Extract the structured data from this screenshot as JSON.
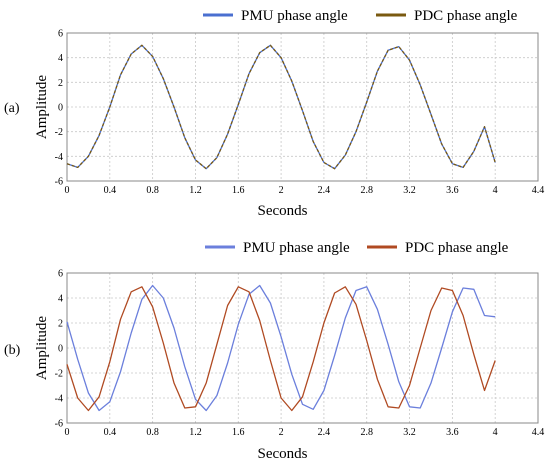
{
  "chart_data": [
    {
      "type": "line",
      "panel_label": "(a)",
      "xlabel": "Seconds",
      "ylabel": "Amplitude",
      "xlim": [
        0,
        4.4
      ],
      "ylim": [
        -6,
        6
      ],
      "x_ticks": [
        "0",
        "0.4",
        "0.8",
        "1.2",
        "1.6",
        "2",
        "2.4",
        "2.8",
        "3.2",
        "3.6",
        "4",
        "4.4"
      ],
      "y_ticks": [
        "-6",
        "-4",
        "-2",
        "0",
        "2",
        "4",
        "6"
      ],
      "grid": true,
      "legend_position": "top",
      "series": [
        {
          "name": "PMU phase angle",
          "color": "#4a6fd0",
          "x": [
            0,
            0.1,
            0.2,
            0.3,
            0.4,
            0.5,
            0.6,
            0.7,
            0.8,
            0.9,
            1.0,
            1.1,
            1.2,
            1.3,
            1.4,
            1.5,
            1.6,
            1.7,
            1.8,
            1.9,
            2.0,
            2.1,
            2.2,
            2.3,
            2.4,
            2.5,
            2.6,
            2.7,
            2.8,
            2.9,
            3.0,
            3.1,
            3.2,
            3.3,
            3.4,
            3.5,
            3.6,
            3.7,
            3.8,
            3.9,
            4.0
          ],
          "y": [
            -4.6,
            -4.9,
            -4.0,
            -2.3,
            0.0,
            2.6,
            4.3,
            5.0,
            4.1,
            2.3,
            0.0,
            -2.5,
            -4.3,
            -5.0,
            -4.1,
            -2.2,
            0.2,
            2.7,
            4.4,
            5.0,
            4.0,
            2.1,
            -0.3,
            -2.8,
            -4.5,
            -5.0,
            -3.9,
            -2.0,
            0.4,
            2.9,
            4.6,
            4.9,
            3.8,
            1.8,
            -0.6,
            -3.0,
            -4.6,
            -4.9,
            -3.6,
            -1.6,
            -4.5
          ]
        },
        {
          "name": "PDC phase angle",
          "color": "#7a5a10",
          "x": [
            0,
            0.1,
            0.2,
            0.3,
            0.4,
            0.5,
            0.6,
            0.7,
            0.8,
            0.9,
            1.0,
            1.1,
            1.2,
            1.3,
            1.4,
            1.5,
            1.6,
            1.7,
            1.8,
            1.9,
            2.0,
            2.1,
            2.2,
            2.3,
            2.4,
            2.5,
            2.6,
            2.7,
            2.8,
            2.9,
            3.0,
            3.1,
            3.2,
            3.3,
            3.4,
            3.5,
            3.6,
            3.7,
            3.8,
            3.9,
            4.0
          ],
          "y": [
            -4.6,
            -4.9,
            -4.0,
            -2.3,
            0.0,
            2.6,
            4.3,
            5.0,
            4.1,
            2.3,
            0.0,
            -2.5,
            -4.3,
            -5.0,
            -4.1,
            -2.2,
            0.2,
            2.7,
            4.4,
            5.0,
            4.0,
            2.1,
            -0.3,
            -2.8,
            -4.5,
            -5.0,
            -3.9,
            -2.0,
            0.4,
            2.9,
            4.6,
            4.9,
            3.8,
            1.8,
            -0.6,
            -3.0,
            -4.6,
            -4.9,
            -3.6,
            -1.6,
            -4.5
          ]
        }
      ]
    },
    {
      "type": "line",
      "panel_label": "(b)",
      "xlabel": "Seconds",
      "ylabel": "Amplitude",
      "xlim": [
        0,
        4.4
      ],
      "ylim": [
        -6,
        6
      ],
      "x_ticks": [
        "0",
        "0.4",
        "0.8",
        "1.2",
        "1.6",
        "2",
        "2.4",
        "2.8",
        "3.2",
        "3.6",
        "4",
        "4.4"
      ],
      "y_ticks": [
        "-6",
        "-4",
        "-2",
        "0",
        "2",
        "4",
        "6"
      ],
      "grid": true,
      "legend_position": "top",
      "series": [
        {
          "name": "PMU phase angle",
          "color": "#6b7fdc",
          "x": [
            0,
            0.1,
            0.2,
            0.3,
            0.4,
            0.5,
            0.6,
            0.7,
            0.8,
            0.9,
            1.0,
            1.1,
            1.2,
            1.3,
            1.4,
            1.5,
            1.6,
            1.7,
            1.8,
            1.9,
            2.0,
            2.1,
            2.2,
            2.3,
            2.4,
            2.5,
            2.6,
            2.7,
            2.8,
            2.9,
            3.0,
            3.1,
            3.2,
            3.3,
            3.4,
            3.5,
            3.6,
            3.7,
            3.8,
            3.9,
            4.0
          ],
          "y": [
            2.1,
            -0.9,
            -3.6,
            -5.0,
            -4.3,
            -1.9,
            1.2,
            3.9,
            5.0,
            4.0,
            1.6,
            -1.5,
            -4.1,
            -5.0,
            -3.8,
            -1.2,
            1.9,
            4.3,
            5.0,
            3.6,
            0.9,
            -2.1,
            -4.5,
            -4.9,
            -3.4,
            -0.6,
            2.4,
            4.6,
            4.9,
            3.1,
            0.3,
            -2.7,
            -4.7,
            -4.8,
            -2.8,
            0.0,
            2.9,
            4.8,
            4.7,
            2.6,
            2.5
          ]
        },
        {
          "name": "PDC phase angle",
          "color": "#b04a22",
          "x": [
            0,
            0.1,
            0.2,
            0.3,
            0.4,
            0.5,
            0.6,
            0.7,
            0.8,
            0.9,
            1.0,
            1.1,
            1.2,
            1.3,
            1.4,
            1.5,
            1.6,
            1.7,
            1.8,
            1.9,
            2.0,
            2.1,
            2.2,
            2.3,
            2.4,
            2.5,
            2.6,
            2.7,
            2.8,
            2.9,
            3.0,
            3.1,
            3.2,
            3.3,
            3.4,
            3.5,
            3.6,
            3.7,
            3.8,
            3.9,
            4.0
          ],
          "y": [
            -1.3,
            -4.0,
            -5.0,
            -3.9,
            -1.1,
            2.3,
            4.5,
            4.9,
            3.3,
            0.4,
            -2.8,
            -4.8,
            -4.7,
            -2.8,
            0.3,
            3.4,
            4.9,
            4.5,
            2.2,
            -1.0,
            -4.0,
            -5.0,
            -3.9,
            -1.1,
            2.0,
            4.4,
            4.9,
            3.5,
            0.6,
            -2.5,
            -4.7,
            -4.8,
            -3.0,
            0.0,
            3.0,
            4.8,
            4.6,
            2.6,
            -0.5,
            -3.4,
            -1.0
          ]
        }
      ]
    }
  ]
}
